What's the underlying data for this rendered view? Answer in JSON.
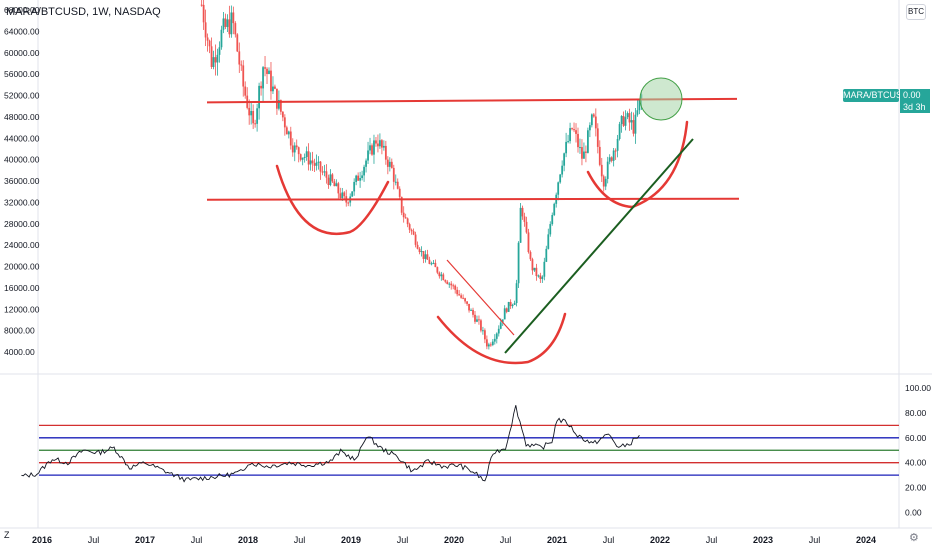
{
  "header": {
    "title": "MARA/BTCUSD, 1W, NASDAQ",
    "currency_badge": "BTC",
    "price_tag_symbol": "MARA/BTCUSD",
    "price_tag_value": "0.00",
    "price_tag_countdown": "3d 3h"
  },
  "footer": {
    "z_label": "Z",
    "settings_icon": "gear-icon"
  },
  "colors": {
    "up": "#26a69a",
    "down": "#ef5350",
    "annotation_red": "#e53935",
    "annotation_green": "#1b5e20",
    "circle_fill": "#a5d6a7",
    "rsi_line": "#131722",
    "rsi_red": "#d32f2f",
    "rsi_blue": "#1a1fb8",
    "rsi_green": "#2e7d32"
  },
  "chart_data": [
    {
      "type": "candlestick",
      "title": "MARA/BTCUSD, 1W, NASDAQ",
      "x_ticks": [
        "2016",
        "Jul",
        "2017",
        "Jul",
        "2018",
        "Jul",
        "2019",
        "Jul",
        "2020",
        "Jul",
        "2021",
        "Jul",
        "2022",
        "Jul",
        "2023",
        "Jul",
        "2024"
      ],
      "y_ticks": [
        4000,
        8000,
        12000,
        16000,
        20000,
        24000,
        28000,
        32000,
        36000,
        40000,
        44000,
        48000,
        52000,
        56000,
        60000,
        64000,
        68000
      ],
      "y_tick_labels": [
        "4000.00",
        "8000.00",
        "12000.00",
        "16000.00",
        "20000.00",
        "24000.00",
        "28000.00",
        "32000.00",
        "36000.00",
        "40000.00",
        "44000.00",
        "48000.00",
        "52000.00",
        "56000.00",
        "60000.00",
        "64000.00",
        "68000.00"
      ],
      "ylim": [
        1000,
        70000
      ],
      "approx_close_series": [
        {
          "t": 2017.55,
          "v": 69000
        },
        {
          "t": 2017.65,
          "v": 58000
        },
        {
          "t": 2017.75,
          "v": 64000
        },
        {
          "t": 2017.85,
          "v": 66000
        },
        {
          "t": 2017.95,
          "v": 54000
        },
        {
          "t": 2018.05,
          "v": 46000
        },
        {
          "t": 2018.15,
          "v": 58000
        },
        {
          "t": 2018.3,
          "v": 50000
        },
        {
          "t": 2018.45,
          "v": 42000
        },
        {
          "t": 2018.6,
          "v": 40000
        },
        {
          "t": 2018.8,
          "v": 36000
        },
        {
          "t": 2018.95,
          "v": 32000
        },
        {
          "t": 2019.1,
          "v": 38000
        },
        {
          "t": 2019.25,
          "v": 44000
        },
        {
          "t": 2019.4,
          "v": 38000
        },
        {
          "t": 2019.5,
          "v": 30000
        },
        {
          "t": 2019.7,
          "v": 22000
        },
        {
          "t": 2019.85,
          "v": 19000
        },
        {
          "t": 2020.0,
          "v": 16000
        },
        {
          "t": 2020.15,
          "v": 12000
        },
        {
          "t": 2020.25,
          "v": 9000
        },
        {
          "t": 2020.33,
          "v": 5000
        },
        {
          "t": 2020.42,
          "v": 8000
        },
        {
          "t": 2020.5,
          "v": 12000
        },
        {
          "t": 2020.6,
          "v": 14000
        },
        {
          "t": 2020.65,
          "v": 32000
        },
        {
          "t": 2020.75,
          "v": 20000
        },
        {
          "t": 2020.85,
          "v": 17000
        },
        {
          "t": 2020.95,
          "v": 30000
        },
        {
          "t": 2021.05,
          "v": 40000
        },
        {
          "t": 2021.15,
          "v": 46000
        },
        {
          "t": 2021.25,
          "v": 40000
        },
        {
          "t": 2021.35,
          "v": 48000
        },
        {
          "t": 2021.45,
          "v": 36000
        },
        {
          "t": 2021.55,
          "v": 42000
        },
        {
          "t": 2021.65,
          "v": 48000
        },
        {
          "t": 2021.75,
          "v": 46000
        },
        {
          "t": 2021.82,
          "v": 52000
        }
      ],
      "annotations": {
        "resistance_level": 51000,
        "support_level": 32500
      }
    },
    {
      "type": "line",
      "name_hint": "RSI-style oscillator",
      "y_ticks": [
        0,
        20,
        40,
        60,
        80,
        100
      ],
      "y_tick_labels": [
        "0.00",
        "20.00",
        "40.00",
        "60.00",
        "80.00",
        "100.00"
      ],
      "ylim": [
        -5,
        105
      ],
      "reference_lines": [
        {
          "value": 70,
          "color": "#d32f2f"
        },
        {
          "value": 60,
          "color": "#1a1fb8"
        },
        {
          "value": 50,
          "color": "#2e7d32"
        },
        {
          "value": 40,
          "color": "#d32f2f"
        },
        {
          "value": 30,
          "color": "#1a1fb8"
        }
      ],
      "approx_series": [
        {
          "t": 2015.8,
          "v": 29
        },
        {
          "t": 2015.95,
          "v": 31
        },
        {
          "t": 2016.1,
          "v": 43
        },
        {
          "t": 2016.25,
          "v": 40
        },
        {
          "t": 2016.4,
          "v": 50
        },
        {
          "t": 2016.55,
          "v": 48
        },
        {
          "t": 2016.7,
          "v": 52
        },
        {
          "t": 2016.85,
          "v": 36
        },
        {
          "t": 2017.0,
          "v": 40
        },
        {
          "t": 2017.2,
          "v": 33
        },
        {
          "t": 2017.4,
          "v": 26
        },
        {
          "t": 2017.6,
          "v": 28
        },
        {
          "t": 2017.8,
          "v": 30
        },
        {
          "t": 2017.95,
          "v": 33
        },
        {
          "t": 2018.0,
          "v": 40
        },
        {
          "t": 2018.2,
          "v": 37
        },
        {
          "t": 2018.4,
          "v": 40
        },
        {
          "t": 2018.6,
          "v": 38
        },
        {
          "t": 2018.8,
          "v": 41
        },
        {
          "t": 2018.9,
          "v": 49
        },
        {
          "t": 2019.05,
          "v": 42
        },
        {
          "t": 2019.15,
          "v": 62
        },
        {
          "t": 2019.3,
          "v": 51
        },
        {
          "t": 2019.45,
          "v": 45
        },
        {
          "t": 2019.6,
          "v": 33
        },
        {
          "t": 2019.75,
          "v": 41
        },
        {
          "t": 2019.9,
          "v": 37
        },
        {
          "t": 2020.05,
          "v": 38
        },
        {
          "t": 2020.2,
          "v": 32
        },
        {
          "t": 2020.3,
          "v": 25
        },
        {
          "t": 2020.38,
          "v": 48
        },
        {
          "t": 2020.5,
          "v": 52
        },
        {
          "t": 2020.6,
          "v": 85
        },
        {
          "t": 2020.7,
          "v": 55
        },
        {
          "t": 2020.85,
          "v": 52
        },
        {
          "t": 2020.95,
          "v": 57
        },
        {
          "t": 2021.0,
          "v": 75
        },
        {
          "t": 2021.1,
          "v": 72
        },
        {
          "t": 2021.2,
          "v": 62
        },
        {
          "t": 2021.35,
          "v": 55
        },
        {
          "t": 2021.5,
          "v": 63
        },
        {
          "t": 2021.6,
          "v": 52
        },
        {
          "t": 2021.7,
          "v": 55
        },
        {
          "t": 2021.8,
          "v": 62
        }
      ]
    }
  ]
}
